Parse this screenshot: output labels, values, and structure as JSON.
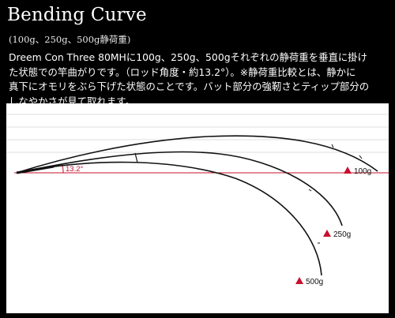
{
  "header": {
    "title": "Bending Curve",
    "subtitle": "(100g、250g、500g静荷重)"
  },
  "description": {
    "lines": [
      "Dreem Con Three 80MHに100g、250g、500gそれぞれの静荷重を垂直に掛け",
      "た状態での竿曲がりです。（ロッド角度・約13.2°）。※静荷重比較とは、静かに",
      "真下にオモリをぶら下げた状態のことです。バット部分の強靭さとティップ部分の",
      "しなやかさが見て取れます。"
    ]
  },
  "diagram": {
    "angle_label": "13.2°",
    "loads": [
      {
        "label": "100g"
      },
      {
        "label": "250g"
      },
      {
        "label": "500g"
      }
    ],
    "colors": {
      "background": "#000000",
      "panel": "#ffffff",
      "grid": "#dcdcdc",
      "accent": "#c8102e",
      "rod": "#111111"
    }
  }
}
